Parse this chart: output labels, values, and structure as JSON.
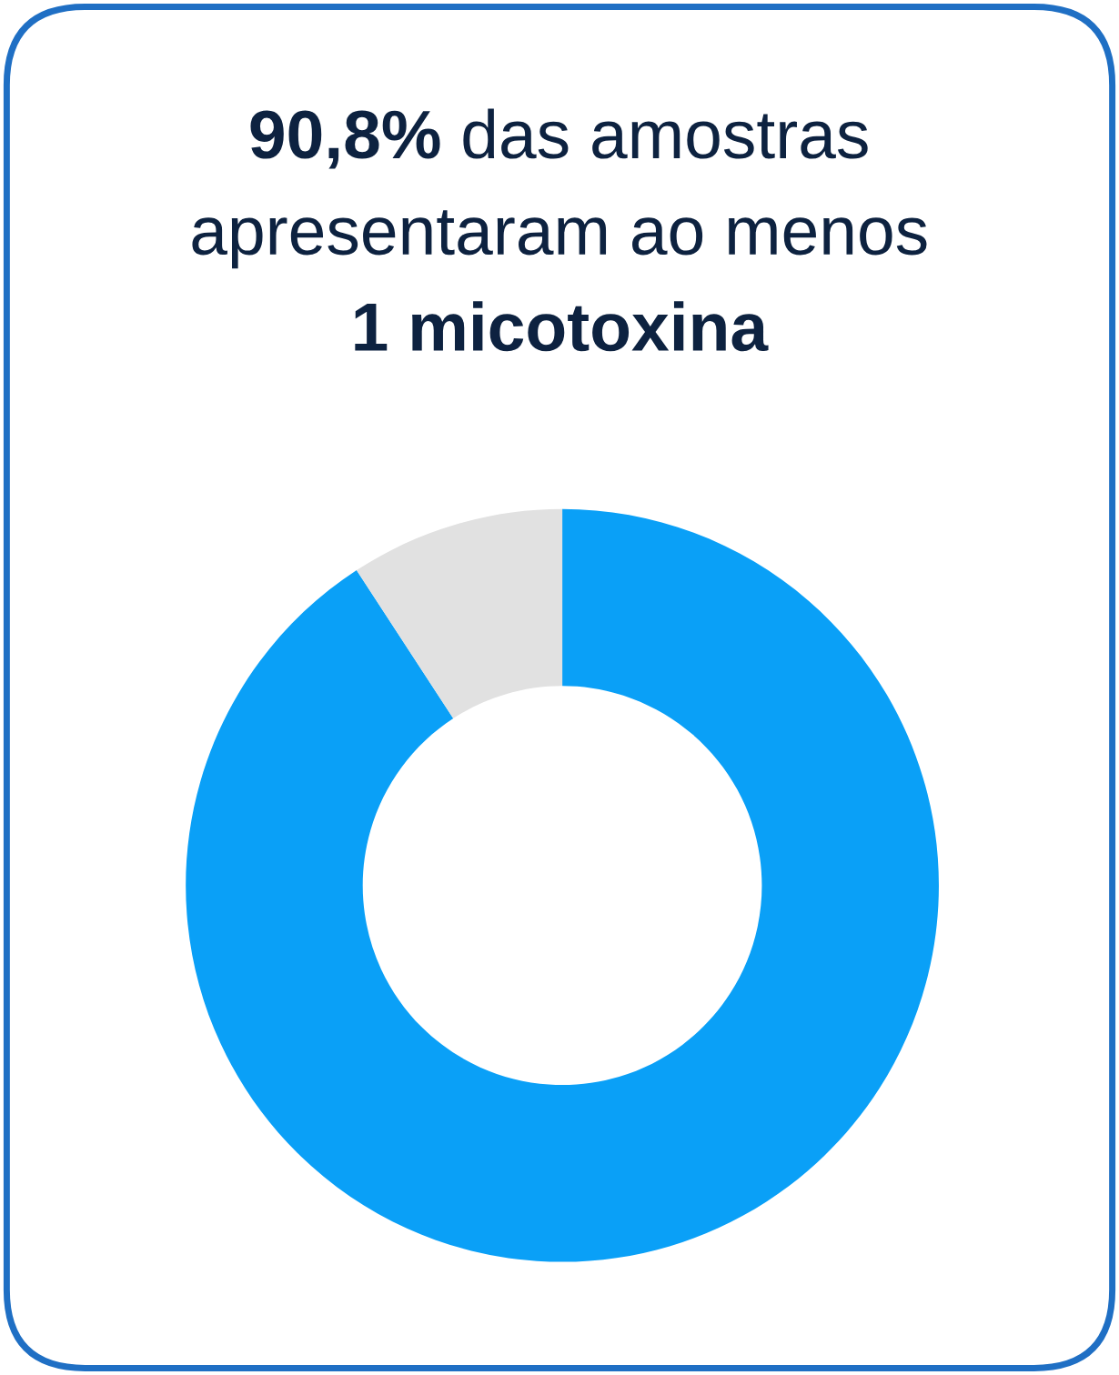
{
  "chart_data": {
    "type": "donut",
    "title": "90,8% das amostras\napresentaram ao menos\n1 micotoxina",
    "categories": [
      null,
      null
    ],
    "values": [
      90.8,
      9.2
    ],
    "colors": [
      "#0aa0f7",
      "#e1e1e1"
    ],
    "legend": false
  }
}
